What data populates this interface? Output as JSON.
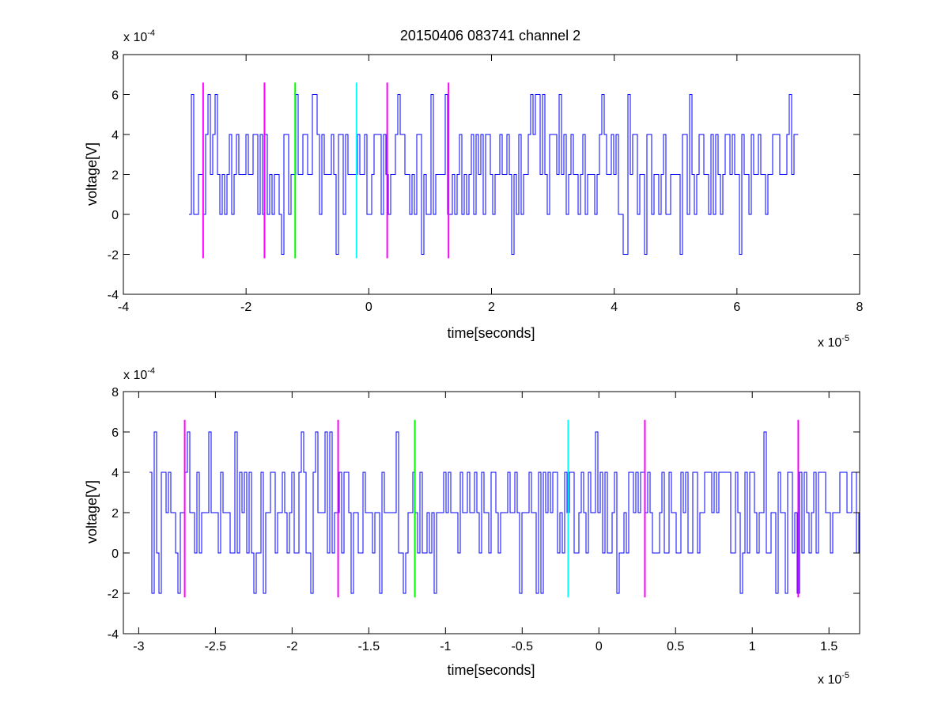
{
  "figure": {
    "title": "20150406 083741 channel 2"
  },
  "chart_data": [
    {
      "type": "line",
      "xlabel": "time[seconds]",
      "ylabel": "voltage[V]",
      "x_exponent": {
        "base": "x 10",
        "power": "-5"
      },
      "y_exponent": {
        "base": "x 10",
        "power": "-4"
      },
      "xlim": [
        -4,
        8
      ],
      "ylim": [
        -4,
        8
      ],
      "x_ticks": [
        -4,
        -2,
        0,
        2,
        4,
        6,
        8
      ],
      "x_tick_labels": [
        "-4",
        "-2",
        "0",
        "2",
        "4",
        "6",
        "8"
      ],
      "y_ticks": [
        -4,
        -2,
        0,
        2,
        4,
        6,
        8
      ],
      "y_tick_labels": [
        "-4",
        "-2",
        "0",
        "2",
        "4",
        "6",
        "8"
      ],
      "grid": false,
      "series": [
        {
          "kind": "signal",
          "color": "#0000ff",
          "x_range": [
            -2.93,
            7.0
          ],
          "levels": [
            -2,
            0,
            2,
            4,
            6
          ],
          "base_level": 2
        }
      ],
      "markers": [
        {
          "x": -2.7,
          "color": "#ff00ff",
          "ymin": -2.2,
          "ymax": 6.6
        },
        {
          "x": -1.7,
          "color": "#ff00ff",
          "ymin": -2.2,
          "ymax": 6.6
        },
        {
          "x": -1.2,
          "color": "#00ff00",
          "ymin": -2.2,
          "ymax": 6.6
        },
        {
          "x": -0.2,
          "color": "#00ffff",
          "ymin": -2.2,
          "ymax": 6.6
        },
        {
          "x": 0.3,
          "color": "#ff00ff",
          "ymin": -2.2,
          "ymax": 6.6
        },
        {
          "x": 1.3,
          "color": "#ff00ff",
          "ymin": -2.2,
          "ymax": 6.6
        }
      ]
    },
    {
      "type": "line",
      "xlabel": "time[seconds]",
      "ylabel": "voltage[V]",
      "x_exponent": {
        "base": "x 10",
        "power": "-5"
      },
      "y_exponent": {
        "base": "x 10",
        "power": "-4"
      },
      "xlim": [
        -3.1,
        1.7
      ],
      "ylim": [
        -4,
        8
      ],
      "x_ticks": [
        -3,
        -2.5,
        -2,
        -1.5,
        -1,
        -0.5,
        0,
        0.5,
        1,
        1.5
      ],
      "x_tick_labels": [
        "-3",
        "-2.5",
        "-2",
        "-1.5",
        "-1",
        "-0.5",
        "0",
        "0.5",
        "1",
        "1.5"
      ],
      "y_ticks": [
        -4,
        -2,
        0,
        2,
        4,
        6,
        8
      ],
      "y_tick_labels": [
        "-4",
        "-2",
        "0",
        "2",
        "4",
        "6",
        "8"
      ],
      "grid": false,
      "series": [
        {
          "kind": "signal",
          "color": "#0000ff",
          "x_range": [
            -2.93,
            1.7
          ],
          "levels": [
            -2,
            0,
            2,
            4,
            6
          ],
          "base_level": 2
        }
      ],
      "markers": [
        {
          "x": -2.7,
          "color": "#ff00ff",
          "ymin": -2.2,
          "ymax": 6.6
        },
        {
          "x": -1.7,
          "color": "#ff00ff",
          "ymin": -2.2,
          "ymax": 6.6
        },
        {
          "x": -1.2,
          "color": "#00ff00",
          "ymin": -2.2,
          "ymax": 6.6
        },
        {
          "x": -0.2,
          "color": "#00ffff",
          "ymin": -2.2,
          "ymax": 6.6
        },
        {
          "x": 0.3,
          "color": "#ff00ff",
          "ymin": -2.2,
          "ymax": 6.6
        },
        {
          "x": 1.3,
          "color": "#ff00ff",
          "ymin": -2.2,
          "ymax": 6.6
        }
      ]
    }
  ]
}
